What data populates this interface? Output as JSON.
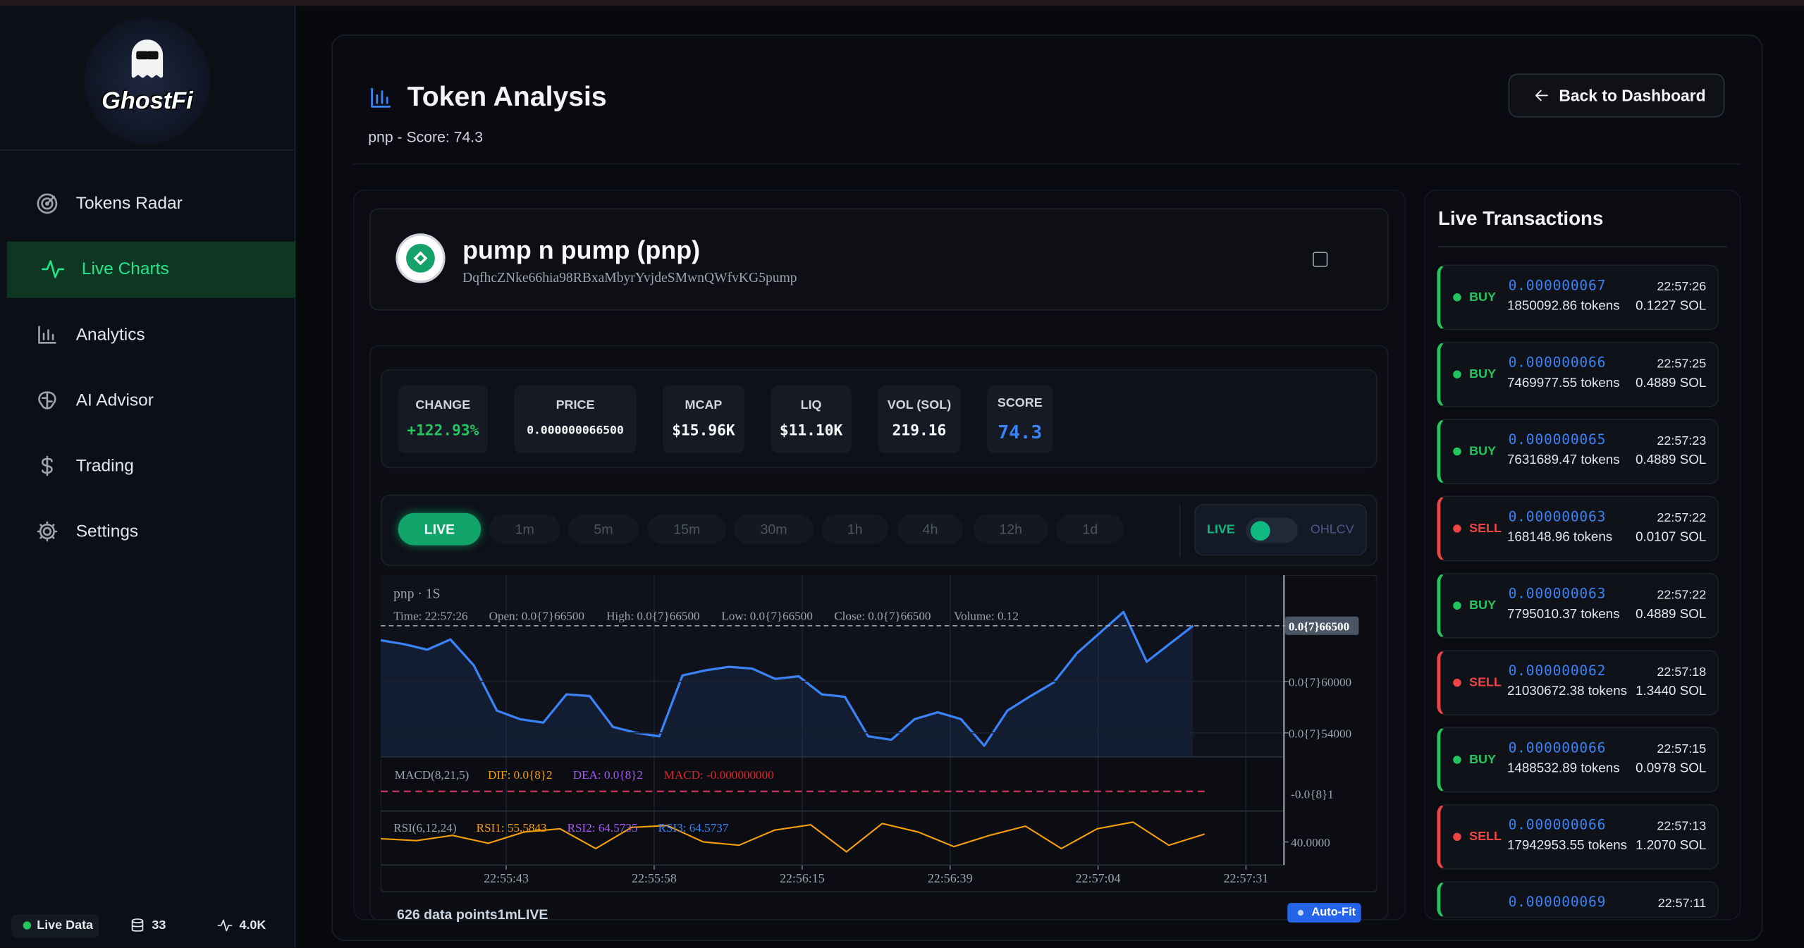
{
  "sidebar": {
    "logo": "GhostFi",
    "nav": [
      "Tokens Radar",
      "Live Charts",
      "Analytics",
      "AI Advisor",
      "Trading",
      "Settings"
    ],
    "active": 1
  },
  "footer": {
    "status": "Live Data",
    "count": "33",
    "rate": "4.0K"
  },
  "header": {
    "title": "Token Analysis",
    "subtitle": "pnp - Score: 74.3",
    "back_button": "Back to Dashboard"
  },
  "token": {
    "name": "pump n pump (pnp)",
    "address": "DqfhcZNke66hia98RBxaMbyrYvjdeSMwnQWfvKG5pump"
  },
  "stats": [
    {
      "label": "CHANGE",
      "value": "+122.93%"
    },
    {
      "label": "PRICE",
      "value": "0.000000066500"
    },
    {
      "label": "MCAP",
      "value": "$15.96K"
    },
    {
      "label": "LIQ",
      "value": "$11.10K"
    },
    {
      "label": "VOL (SOL)",
      "value": "219.16"
    },
    {
      "label": "SCORE",
      "value": "74.3"
    }
  ],
  "timeframes": {
    "live": "LIVE",
    "options": [
      "1m",
      "5m",
      "15m",
      "30m",
      "1h",
      "4h",
      "12h",
      "1d"
    ]
  },
  "mode_toggle": {
    "left": "LIVE",
    "right": "OHLCV"
  },
  "chart": {
    "title": "pnp · 1S",
    "legend": [
      "Time: 22:57:26",
      "Open: 0.0{7}66500",
      "High: 0.0{7}66500",
      "Low: 0.0{7}66500",
      "Close: 0.0{7}66500",
      "Volume: 0.12"
    ],
    "color": "#3b82f6",
    "values": [
      6.48e-08,
      6.435e-08,
      6.37e-08,
      6.49e-08,
      6.19e-08,
      5.66e-08,
      5.56e-08,
      5.52e-08,
      5.85e-08,
      5.83e-08,
      5.47e-08,
      5.4e-08,
      5.36e-08,
      6.07e-08,
      6.13e-08,
      6.17e-08,
      6.15e-08,
      6.03e-08,
      6.06e-08,
      5.85e-08,
      5.82e-08,
      5.36e-08,
      5.32e-08,
      5.56e-08,
      5.64e-08,
      5.56e-08,
      5.25e-08,
      5.66e-08,
      5.83e-08,
      5.99e-08,
      6.33e-08,
      6.57e-08,
      6.81e-08,
      6.23e-08,
      6.44e-08,
      6.65e-08
    ],
    "ylim": [
      5.12e-08,
      7.24e-08
    ],
    "yticks": [
      {
        "value": 6.65e-08,
        "label": "0.0{7}66500"
      },
      {
        "value": 6e-08,
        "label": "0.0{7}60000"
      },
      {
        "value": 5.4e-08,
        "label": "0.0{7}54000"
      }
    ],
    "xticks": [
      "22:55:43",
      "22:55:58",
      "22:56:15",
      "22:56:39",
      "22:57:04",
      "22:57:31"
    ],
    "macd": {
      "legend": [
        "MACD(8,21,5)",
        "DIF: 0.0{8}2",
        "DEA: 0.0{8}2",
        "MACD: -0.000000000"
      ],
      "tick_label": "-0.0{8}1"
    },
    "rsi": {
      "legend": [
        "RSI(6,12,24)",
        "RSI1: 55.5843",
        "RSI2: 64.5735",
        "RSI3: 64.5737"
      ],
      "color": "#f59e0b",
      "values": [
        45,
        42,
        50,
        38,
        55,
        60,
        30,
        62,
        65,
        40,
        35,
        58,
        66,
        25,
        68,
        55,
        33,
        50,
        64,
        30,
        60,
        70,
        35,
        52
      ],
      "ylim": [
        5,
        87
      ],
      "yticks": [
        {
          "value": 40,
          "label": "40.0000"
        }
      ]
    }
  },
  "chart_footer": {
    "info": "626 data points1mLIVE",
    "autofit": "Auto-Fit"
  },
  "transactions": {
    "title": "Live Transactions",
    "items": [
      {
        "type": "BUY",
        "price": "0.000000067",
        "time": "22:57:26",
        "amount": "1850092.86 tokens",
        "sol": "0.1227 SOL"
      },
      {
        "type": "BUY",
        "price": "0.000000066",
        "time": "22:57:25",
        "amount": "7469977.55 tokens",
        "sol": "0.4889 SOL"
      },
      {
        "type": "BUY",
        "price": "0.000000065",
        "time": "22:57:23",
        "amount": "7631689.47 tokens",
        "sol": "0.4889 SOL"
      },
      {
        "type": "SELL",
        "price": "0.000000063",
        "time": "22:57:22",
        "amount": "168148.96 tokens",
        "sol": "0.0107 SOL"
      },
      {
        "type": "BUY",
        "price": "0.000000063",
        "time": "22:57:22",
        "amount": "7795010.37 tokens",
        "sol": "0.4889 SOL"
      },
      {
        "type": "SELL",
        "price": "0.000000062",
        "time": "22:57:18",
        "amount": "21030672.38 tokens",
        "sol": "1.3440 SOL"
      },
      {
        "type": "BUY",
        "price": "0.000000066",
        "time": "22:57:15",
        "amount": "1488532.89 tokens",
        "sol": "0.0978 SOL"
      },
      {
        "type": "SELL",
        "price": "0.000000066",
        "time": "22:57:13",
        "amount": "17942953.55 tokens",
        "sol": "1.2070 SOL"
      },
      {
        "price": "0.000000069",
        "time": "22:57:11"
      }
    ]
  }
}
